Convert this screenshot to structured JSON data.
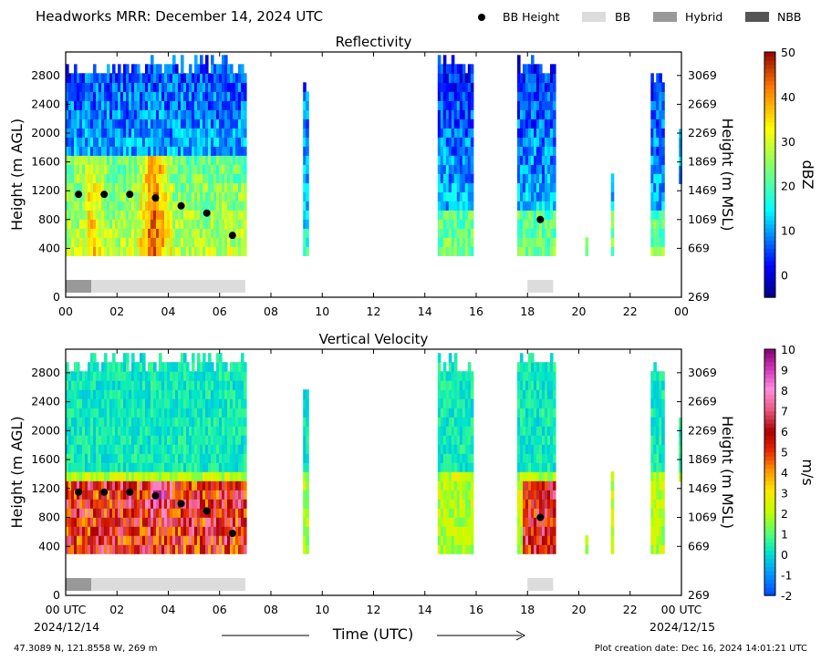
{
  "figure": {
    "title": "Headworks MRR:  December 14, 2024 UTC",
    "legend": [
      {
        "label": "BB Height",
        "marker": "dot",
        "color": "#000000"
      },
      {
        "label": "BB",
        "marker": "box",
        "color": "#dcdcdc"
      },
      {
        "label": "Hybrid",
        "marker": "box",
        "color": "#999999"
      },
      {
        "label": "NBB",
        "marker": "box",
        "color": "#555555"
      }
    ],
    "x_label": "Time (UTC)",
    "start_date": "2024/12/14",
    "end_date": "2024/12/15",
    "location": "47.3089 N, 121.8558 W, 269 m",
    "creation": "Plot creation date: Dec 16, 2024 14:01:21 UTC"
  },
  "chart_data": [
    {
      "type": "heatmap",
      "title": "Reflectivity",
      "xlabel": "Time (UTC)",
      "ylabel": "Height (m AGL)",
      "ylabel_right": "Height (m MSL)",
      "xlim": [
        0,
        24
      ],
      "ylim": [
        0,
        3000
      ],
      "x_ticks": [
        "00",
        "02",
        "04",
        "06",
        "08",
        "10",
        "12",
        "14",
        "16",
        "18",
        "20",
        "22",
        "00"
      ],
      "y_ticks": [
        "0",
        "400",
        "800",
        "1200",
        "1600",
        "2000",
        "2400",
        "2800"
      ],
      "y_ticks_right": [
        "269",
        "669",
        "1069",
        "1469",
        "1869",
        "2269",
        "2669",
        "3069"
      ],
      "colorbar": {
        "label": "dBZ",
        "min": -5,
        "max": 50,
        "ticks": [
          "0",
          "10",
          "20",
          "30",
          "40",
          "50"
        ]
      },
      "bb_height": [
        {
          "t": 0.5,
          "h": 1150
        },
        {
          "t": 1.5,
          "h": 1150
        },
        {
          "t": 2.5,
          "h": 1150
        },
        {
          "t": 3.5,
          "h": 1100
        },
        {
          "t": 4.5,
          "h": 990
        },
        {
          "t": 5.5,
          "h": 890
        },
        {
          "t": 6.5,
          "h": 580
        },
        {
          "t": 18.5,
          "h": 800
        }
      ],
      "bb_type": [
        {
          "type": "Hybrid",
          "start": 0.0,
          "end": 1.0
        },
        {
          "type": "BB",
          "start": 1.0,
          "end": 7.0
        },
        {
          "type": "BB",
          "start": 18.0,
          "end": 19.0
        }
      ]
    },
    {
      "type": "heatmap",
      "title": "Vertical Velocity",
      "xlabel": "Time (UTC)",
      "ylabel": "Height (m AGL)",
      "ylabel_right": "Height (m MSL)",
      "xlim": [
        0,
        24
      ],
      "ylim": [
        0,
        3000
      ],
      "x_ticks": [
        "00 UTC",
        "02",
        "04",
        "06",
        "08",
        "10",
        "12",
        "14",
        "16",
        "18",
        "20",
        "22",
        "00 UTC"
      ],
      "y_ticks": [
        "0",
        "400",
        "800",
        "1200",
        "1600",
        "2000",
        "2400",
        "2800"
      ],
      "y_ticks_right": [
        "269",
        "669",
        "1069",
        "1469",
        "1869",
        "2269",
        "2669",
        "3069"
      ],
      "colorbar": {
        "label": "m/s",
        "min": -2,
        "max": 10,
        "ticks": [
          "-2",
          "-1",
          "0",
          "1",
          "2",
          "3",
          "4",
          "5",
          "6",
          "7",
          "8",
          "9",
          "10"
        ]
      },
      "bb_height": [
        {
          "t": 0.5,
          "h": 1150
        },
        {
          "t": 1.5,
          "h": 1150
        },
        {
          "t": 2.5,
          "h": 1150
        },
        {
          "t": 3.5,
          "h": 1100
        },
        {
          "t": 4.5,
          "h": 990
        },
        {
          "t": 5.5,
          "h": 890
        },
        {
          "t": 6.5,
          "h": 580
        },
        {
          "t": 18.5,
          "h": 800
        }
      ],
      "bb_type": [
        {
          "type": "Hybrid",
          "start": 0.0,
          "end": 1.0
        },
        {
          "type": "BB",
          "start": 1.0,
          "end": 7.0
        },
        {
          "type": "BB",
          "start": 18.0,
          "end": 19.0
        }
      ]
    }
  ]
}
